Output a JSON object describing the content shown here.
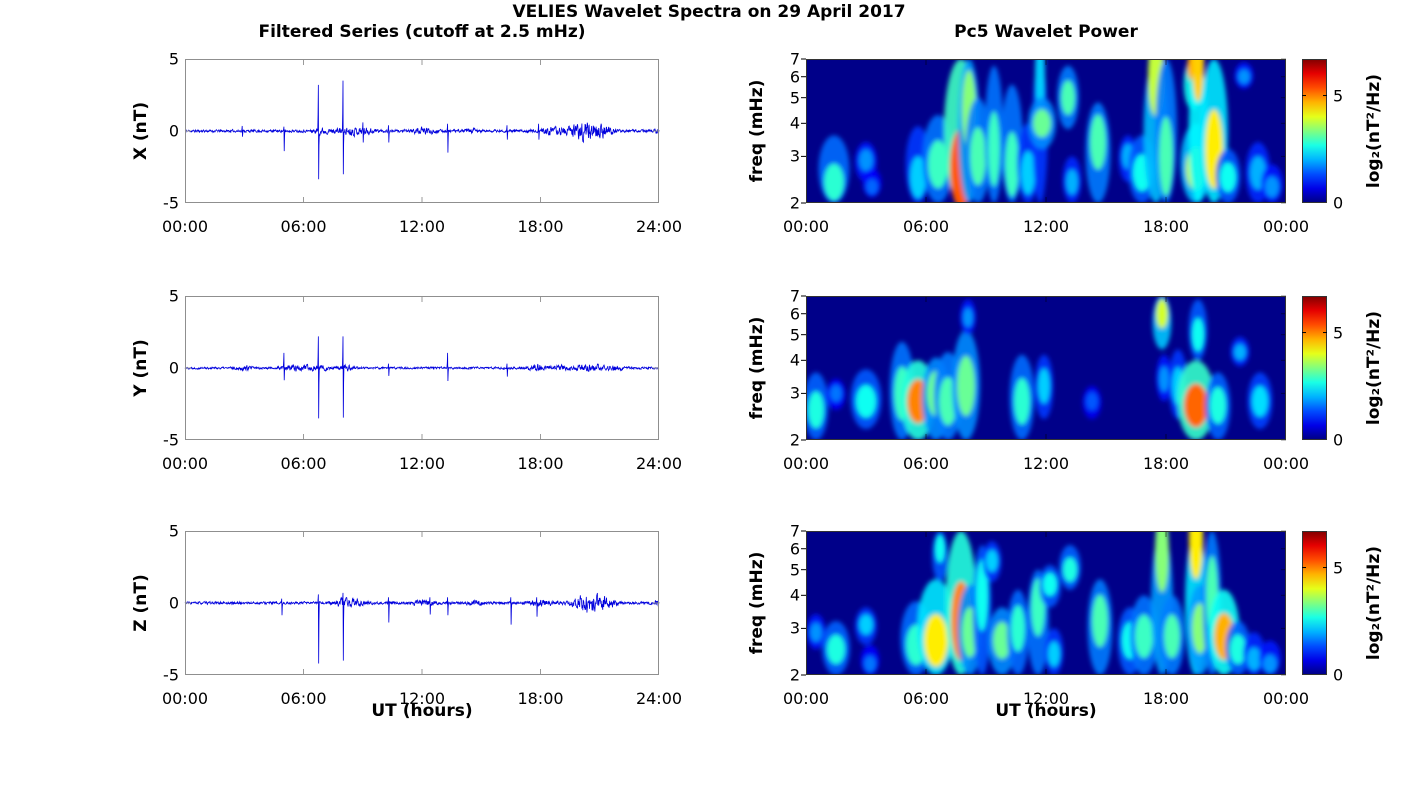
{
  "figure": {
    "title": "VELIES Wavelet Spectra on 29 April 2017",
    "left_column_title": "Filtered Series (cutoff at 2.5 mHz)",
    "right_column_title": "Pc5 Wavelet Power",
    "xlabel": "UT (hours)",
    "background": "#ffffff",
    "series_line_color": "#0000dd",
    "colorbar_label": "log₂(nT²/Hz)",
    "colorbar_ticks": [
      0,
      5
    ],
    "colorbar_vmax": 6.7
  },
  "chart_data": [
    {
      "type": "line",
      "component": "X",
      "ylabel": "X (nT)",
      "ylim": [
        -5,
        5
      ],
      "yticks": [
        5,
        0,
        -5
      ],
      "x_range_hours": [
        0,
        24
      ],
      "x_ticks": [
        "00:00",
        "06:00",
        "12:00",
        "18:00",
        "24:00"
      ],
      "baseline_noise": 0.13,
      "spikes": [
        {
          "t": 2.9,
          "up": 0.35,
          "down": -0.4
        },
        {
          "t": 5.0,
          "up": 0.3,
          "down": -1.4
        },
        {
          "t": 6.75,
          "up": 3.2,
          "down": -3.35
        },
        {
          "t": 8.0,
          "up": 3.5,
          "down": -3.0
        },
        {
          "t": 9.0,
          "up": 0.6,
          "down": -0.8
        },
        {
          "t": 10.3,
          "up": 0.4,
          "down": -0.8
        },
        {
          "t": 13.3,
          "up": 0.5,
          "down": -1.5
        },
        {
          "t": 16.3,
          "up": 0.4,
          "down": -0.6
        },
        {
          "t": 17.9,
          "up": 0.5,
          "down": -0.6
        }
      ],
      "bursts": [
        {
          "t": 6.9,
          "sigma": 0.25,
          "amp": 0.25
        },
        {
          "t": 8.3,
          "sigma": 0.5,
          "amp": 0.3
        },
        {
          "t": 9.3,
          "sigma": 0.4,
          "amp": 0.2
        },
        {
          "t": 12.1,
          "sigma": 0.4,
          "amp": 0.25
        },
        {
          "t": 14.6,
          "sigma": 0.3,
          "amp": 0.15
        },
        {
          "t": 18.3,
          "sigma": 0.4,
          "amp": 0.25
        },
        {
          "t": 19.3,
          "sigma": 0.4,
          "amp": 0.3
        },
        {
          "t": 20.4,
          "sigma": 0.45,
          "amp": 1.0
        },
        {
          "t": 21.3,
          "sigma": 0.3,
          "amp": 0.35
        },
        {
          "t": 23.9,
          "sigma": 0.12,
          "amp": 0.3
        }
      ]
    },
    {
      "type": "line",
      "component": "Y",
      "ylabel": "Y (nT)",
      "ylim": [
        -5,
        5
      ],
      "yticks": [
        5,
        0,
        -5
      ],
      "x_range_hours": [
        0,
        24
      ],
      "x_ticks": [
        "00:00",
        "06:00",
        "12:00",
        "18:00",
        "24:00"
      ],
      "baseline_noise": 0.11,
      "spikes": [
        {
          "t": 5.0,
          "up": 1.05,
          "down": -0.85
        },
        {
          "t": 6.75,
          "up": 2.2,
          "down": -3.5
        },
        {
          "t": 8.0,
          "up": 2.2,
          "down": -3.45
        },
        {
          "t": 10.3,
          "up": 0.3,
          "down": -0.55
        },
        {
          "t": 13.3,
          "up": 1.05,
          "down": -0.9
        },
        {
          "t": 16.3,
          "up": 0.3,
          "down": -0.6
        }
      ],
      "bursts": [
        {
          "t": 3.0,
          "sigma": 0.3,
          "amp": 0.15
        },
        {
          "t": 5.7,
          "sigma": 0.5,
          "amp": 0.25
        },
        {
          "t": 6.9,
          "sigma": 0.3,
          "amp": 0.2
        },
        {
          "t": 8.2,
          "sigma": 0.3,
          "amp": 0.2
        },
        {
          "t": 17.9,
          "sigma": 0.35,
          "amp": 0.3
        },
        {
          "t": 19.0,
          "sigma": 0.3,
          "amp": 0.2
        },
        {
          "t": 20.5,
          "sigma": 0.5,
          "amp": 0.3
        },
        {
          "t": 21.8,
          "sigma": 0.3,
          "amp": 0.2
        }
      ]
    },
    {
      "type": "line",
      "component": "Z",
      "ylabel": "Z (nT)",
      "ylim": [
        -5,
        5
      ],
      "yticks": [
        5,
        0,
        -5
      ],
      "x_range_hours": [
        0,
        24
      ],
      "x_ticks": [
        "00:00",
        "06:00",
        "12:00",
        "18:00",
        "24:00"
      ],
      "baseline_noise": 0.13,
      "spikes": [
        {
          "t": 4.9,
          "up": 0.3,
          "down": -0.85
        },
        {
          "t": 6.75,
          "up": 0.6,
          "down": -4.2
        },
        {
          "t": 8.0,
          "up": 0.7,
          "down": -4.0
        },
        {
          "t": 10.3,
          "up": 0.4,
          "down": -1.35
        },
        {
          "t": 12.4,
          "up": 0.4,
          "down": -0.8
        },
        {
          "t": 13.3,
          "up": 0.4,
          "down": -0.85
        },
        {
          "t": 16.5,
          "up": 0.4,
          "down": -1.5
        },
        {
          "t": 17.8,
          "up": 0.4,
          "down": -0.95
        }
      ],
      "bursts": [
        {
          "t": 7.9,
          "sigma": 0.25,
          "amp": 0.25
        },
        {
          "t": 8.5,
          "sigma": 0.4,
          "amp": 0.3
        },
        {
          "t": 12.0,
          "sigma": 0.4,
          "amp": 0.25
        },
        {
          "t": 14.7,
          "sigma": 0.3,
          "amp": 0.15
        },
        {
          "t": 18.0,
          "sigma": 0.4,
          "amp": 0.25
        },
        {
          "t": 20.4,
          "sigma": 0.5,
          "amp": 0.9
        },
        {
          "t": 21.4,
          "sigma": 0.3,
          "amp": 0.4
        },
        {
          "t": 23.9,
          "sigma": 0.12,
          "amp": 0.3
        }
      ]
    },
    {
      "type": "heatmap",
      "component": "X",
      "ylabel": "freq (mHz)",
      "flim_mhz": [
        2,
        7
      ],
      "yscale": "log",
      "yticks": [
        7,
        6,
        5,
        4,
        3,
        2
      ],
      "x_range_hours": [
        0,
        24
      ],
      "x_ticks": [
        "00:00",
        "06:00",
        "12:00",
        "18:00",
        "00:00"
      ],
      "events": [
        {
          "t": 1.4,
          "lo": 2,
          "hi": 3.6,
          "pk": 2.4,
          "i": 2.8,
          "w": 0.5
        },
        {
          "t": 3.0,
          "lo": 2.4,
          "hi": 3.4,
          "pk": 2.9,
          "i": 1.8,
          "w": 0.35
        },
        {
          "t": 3.3,
          "lo": 2.1,
          "hi": 2.7,
          "pk": 2.3,
          "i": 1.5,
          "w": 0.3
        },
        {
          "t": 5.6,
          "lo": 2,
          "hi": 3.9,
          "pk": 2.5,
          "i": 2.2,
          "w": 0.4
        },
        {
          "t": 6.6,
          "lo": 2,
          "hi": 4.3,
          "pk": 2.8,
          "i": 2.9,
          "w": 0.5
        },
        {
          "t": 7.75,
          "lo": 2,
          "hi": 7,
          "pk": 2.7,
          "i": 5.3,
          "w": 0.55
        },
        {
          "t": 8.15,
          "lo": 2,
          "hi": 7,
          "pk": 4.5,
          "i": 3.4,
          "w": 0.35
        },
        {
          "t": 8.6,
          "lo": 2,
          "hi": 5,
          "pk": 3.0,
          "i": 3.0,
          "w": 0.4
        },
        {
          "t": 9.4,
          "lo": 2,
          "hi": 6.6,
          "pk": 3.2,
          "i": 2.9,
          "w": 0.3
        },
        {
          "t": 10.3,
          "lo": 2,
          "hi": 5.6,
          "pk": 2.8,
          "i": 2.9,
          "w": 0.35
        },
        {
          "t": 11.1,
          "lo": 2,
          "hi": 4,
          "pk": 2.6,
          "i": 2.2,
          "w": 0.35
        },
        {
          "t": 11.7,
          "lo": 2,
          "hi": 7,
          "pk": 6.0,
          "i": 2.2,
          "w": 0.25
        },
        {
          "t": 11.8,
          "lo": 3.2,
          "hi": 5,
          "pk": 4.0,
          "i": 3.2,
          "w": 0.45
        },
        {
          "t": 13.1,
          "lo": 3.8,
          "hi": 6.6,
          "pk": 5.0,
          "i": 3.0,
          "w": 0.35
        },
        {
          "t": 13.3,
          "lo": 2,
          "hi": 3,
          "pk": 2.4,
          "i": 2.0,
          "w": 0.3
        },
        {
          "t": 14.6,
          "lo": 2,
          "hi": 4.8,
          "pk": 3.4,
          "i": 3.0,
          "w": 0.4
        },
        {
          "t": 16.1,
          "lo": 2.4,
          "hi": 3.6,
          "pk": 3.0,
          "i": 2.0,
          "w": 0.3
        },
        {
          "t": 16.8,
          "lo": 2,
          "hi": 3.6,
          "pk": 2.6,
          "i": 2.6,
          "w": 0.45
        },
        {
          "t": 17.5,
          "lo": 2,
          "hi": 7,
          "pk": 6.0,
          "i": 3.8,
          "w": 0.4
        },
        {
          "t": 18.0,
          "lo": 2,
          "hi": 7,
          "pk": 3.0,
          "i": 3.0,
          "w": 0.35
        },
        {
          "t": 19.35,
          "lo": 4.5,
          "hi": 7,
          "pk": 6.5,
          "i": 4.8,
          "w": 0.3
        },
        {
          "t": 19.5,
          "lo": 2,
          "hi": 4,
          "pk": 2.7,
          "i": 3.8,
          "w": 0.5
        },
        {
          "t": 19.6,
          "lo": 2,
          "hi": 7,
          "pk": 6.8,
          "i": 4.5,
          "w": 0.3
        },
        {
          "t": 20.4,
          "lo": 2,
          "hi": 7,
          "pk": 3.2,
          "i": 4.3,
          "w": 0.45
        },
        {
          "t": 21.1,
          "lo": 2,
          "hi": 3.2,
          "pk": 2.5,
          "i": 2.6,
          "w": 0.4
        },
        {
          "t": 21.9,
          "lo": 5.4,
          "hi": 6.8,
          "pk": 6.0,
          "i": 1.8,
          "w": 0.3
        },
        {
          "t": 22.6,
          "lo": 2,
          "hi": 3.4,
          "pk": 2.6,
          "i": 2.0,
          "w": 0.4
        },
        {
          "t": 23.3,
          "lo": 2,
          "hi": 2.8,
          "pk": 2.3,
          "i": 1.8,
          "w": 0.35
        }
      ]
    },
    {
      "type": "heatmap",
      "component": "Y",
      "ylabel": "freq (mHz)",
      "flim_mhz": [
        2,
        7
      ],
      "yscale": "log",
      "yticks": [
        7,
        6,
        5,
        4,
        3,
        2
      ],
      "x_range_hours": [
        0,
        24
      ],
      "x_ticks": [
        "00:00",
        "06:00",
        "12:00",
        "18:00",
        "00:00"
      ],
      "events": [
        {
          "t": 0.5,
          "lo": 2,
          "hi": 3.6,
          "pk": 2.6,
          "i": 2.7,
          "w": 0.4
        },
        {
          "t": 1.5,
          "lo": 2.6,
          "hi": 3.4,
          "pk": 3.0,
          "i": 1.6,
          "w": 0.3
        },
        {
          "t": 3.0,
          "lo": 2.2,
          "hi": 3.7,
          "pk": 2.8,
          "i": 2.6,
          "w": 0.5
        },
        {
          "t": 4.8,
          "lo": 2,
          "hi": 4.7,
          "pk": 3.0,
          "i": 2.9,
          "w": 0.4
        },
        {
          "t": 5.6,
          "lo": 2,
          "hi": 4,
          "pk": 2.8,
          "i": 5.0,
          "w": 0.55
        },
        {
          "t": 6.5,
          "lo": 2,
          "hi": 4.1,
          "pk": 3.0,
          "i": 3.2,
          "w": 0.45
        },
        {
          "t": 7.1,
          "lo": 2,
          "hi": 4.3,
          "pk": 2.8,
          "i": 3.0,
          "w": 0.45
        },
        {
          "t": 8.0,
          "lo": 2,
          "hi": 5.2,
          "pk": 3.2,
          "i": 3.2,
          "w": 0.45
        },
        {
          "t": 8.1,
          "lo": 5,
          "hi": 6.8,
          "pk": 5.8,
          "i": 1.8,
          "w": 0.25
        },
        {
          "t": 10.8,
          "lo": 2,
          "hi": 4.2,
          "pk": 2.8,
          "i": 2.8,
          "w": 0.4
        },
        {
          "t": 11.9,
          "lo": 2.4,
          "hi": 4.2,
          "pk": 3.2,
          "i": 2.2,
          "w": 0.3
        },
        {
          "t": 14.3,
          "lo": 2.4,
          "hi": 3.2,
          "pk": 2.8,
          "i": 1.4,
          "w": 0.3
        },
        {
          "t": 17.8,
          "lo": 4.4,
          "hi": 7,
          "pk": 6.0,
          "i": 3.9,
          "w": 0.3
        },
        {
          "t": 17.9,
          "lo": 2.8,
          "hi": 4.2,
          "pk": 3.4,
          "i": 1.8,
          "w": 0.25
        },
        {
          "t": 18.6,
          "lo": 2.4,
          "hi": 4.4,
          "pk": 3.2,
          "i": 2.2,
          "w": 0.3
        },
        {
          "t": 19.5,
          "lo": 2,
          "hi": 4,
          "pk": 2.7,
          "i": 5.2,
          "w": 0.6
        },
        {
          "t": 19.6,
          "lo": 4,
          "hi": 6.8,
          "pk": 5.0,
          "i": 2.6,
          "w": 0.3
        },
        {
          "t": 20.6,
          "lo": 2,
          "hi": 3.6,
          "pk": 2.7,
          "i": 2.7,
          "w": 0.4
        },
        {
          "t": 21.7,
          "lo": 3.8,
          "hi": 4.9,
          "pk": 4.3,
          "i": 2.0,
          "w": 0.3
        },
        {
          "t": 22.7,
          "lo": 2.2,
          "hi": 3.6,
          "pk": 2.8,
          "i": 2.3,
          "w": 0.4
        }
      ]
    },
    {
      "type": "heatmap",
      "component": "Z",
      "ylabel": "freq (mHz)",
      "flim_mhz": [
        2,
        7
      ],
      "yscale": "log",
      "yticks": [
        7,
        6,
        5,
        4,
        3,
        2
      ],
      "x_range_hours": [
        0,
        24
      ],
      "x_ticks": [
        "00:00",
        "06:00",
        "12:00",
        "18:00",
        "00:00"
      ],
      "events": [
        {
          "t": 0.5,
          "lo": 2.5,
          "hi": 3.4,
          "pk": 2.9,
          "i": 1.8,
          "w": 0.3
        },
        {
          "t": 1.5,
          "lo": 2,
          "hi": 3.2,
          "pk": 2.5,
          "i": 2.7,
          "w": 0.45
        },
        {
          "t": 3.0,
          "lo": 2.6,
          "hi": 3.6,
          "pk": 3.1,
          "i": 2.2,
          "w": 0.35
        },
        {
          "t": 3.2,
          "lo": 2,
          "hi": 2.6,
          "pk": 2.2,
          "i": 1.6,
          "w": 0.3
        },
        {
          "t": 5.5,
          "lo": 2,
          "hi": 3.8,
          "pk": 2.6,
          "i": 2.8,
          "w": 0.5
        },
        {
          "t": 6.5,
          "lo": 2,
          "hi": 4.6,
          "pk": 2.7,
          "i": 4.3,
          "w": 0.6
        },
        {
          "t": 6.7,
          "lo": 4.5,
          "hi": 7,
          "pk": 6.0,
          "i": 2.6,
          "w": 0.25
        },
        {
          "t": 7.75,
          "lo": 2,
          "hi": 7,
          "pk": 3.2,
          "i": 5.0,
          "w": 0.5
        },
        {
          "t": 8.2,
          "lo": 2,
          "hi": 4.4,
          "pk": 2.9,
          "i": 3.2,
          "w": 0.4
        },
        {
          "t": 8.8,
          "lo": 2,
          "hi": 6.2,
          "pk": 4.0,
          "i": 2.6,
          "w": 0.3
        },
        {
          "t": 9.3,
          "lo": 4.5,
          "hi": 6.4,
          "pk": 5.4,
          "i": 2.2,
          "w": 0.3
        },
        {
          "t": 9.8,
          "lo": 2,
          "hi": 3.6,
          "pk": 2.7,
          "i": 3.2,
          "w": 0.45
        },
        {
          "t": 10.6,
          "lo": 2,
          "hi": 4.2,
          "pk": 3.0,
          "i": 2.8,
          "w": 0.35
        },
        {
          "t": 11.6,
          "lo": 2,
          "hi": 5,
          "pk": 3.6,
          "i": 2.9,
          "w": 0.35
        },
        {
          "t": 12.2,
          "lo": 3.6,
          "hi": 5.2,
          "pk": 4.4,
          "i": 2.6,
          "w": 0.35
        },
        {
          "t": 12.4,
          "lo": 2,
          "hi": 3,
          "pk": 2.4,
          "i": 2.2,
          "w": 0.3
        },
        {
          "t": 13.2,
          "lo": 4.2,
          "hi": 6.2,
          "pk": 5.0,
          "i": 2.7,
          "w": 0.35
        },
        {
          "t": 14.7,
          "lo": 2,
          "hi": 4.6,
          "pk": 3.2,
          "i": 3.0,
          "w": 0.4
        },
        {
          "t": 16.2,
          "lo": 2,
          "hi": 3.6,
          "pk": 2.7,
          "i": 2.6,
          "w": 0.4
        },
        {
          "t": 16.9,
          "lo": 2,
          "hi": 4,
          "pk": 2.8,
          "i": 2.9,
          "w": 0.45
        },
        {
          "t": 17.8,
          "lo": 2,
          "hi": 7,
          "pk": 5.8,
          "i": 3.4,
          "w": 0.35
        },
        {
          "t": 18.3,
          "lo": 2,
          "hi": 4,
          "pk": 2.8,
          "i": 3.0,
          "w": 0.4
        },
        {
          "t": 19.5,
          "lo": 2,
          "hi": 7,
          "pk": 6.5,
          "i": 4.3,
          "w": 0.35
        },
        {
          "t": 19.7,
          "lo": 2,
          "hi": 4.4,
          "pk": 3.0,
          "i": 3.4,
          "w": 0.4
        },
        {
          "t": 20.3,
          "lo": 2,
          "hi": 7,
          "pk": 4.0,
          "i": 3.0,
          "w": 0.3
        },
        {
          "t": 20.9,
          "lo": 2,
          "hi": 4.2,
          "pk": 2.8,
          "i": 4.7,
          "w": 0.5
        },
        {
          "t": 21.6,
          "lo": 2,
          "hi": 3.2,
          "pk": 2.5,
          "i": 2.7,
          "w": 0.4
        },
        {
          "t": 22.4,
          "lo": 2,
          "hi": 2.9,
          "pk": 2.3,
          "i": 2.0,
          "w": 0.35
        },
        {
          "t": 23.2,
          "lo": 2,
          "hi": 2.7,
          "pk": 2.2,
          "i": 1.8,
          "w": 0.35
        }
      ]
    }
  ]
}
